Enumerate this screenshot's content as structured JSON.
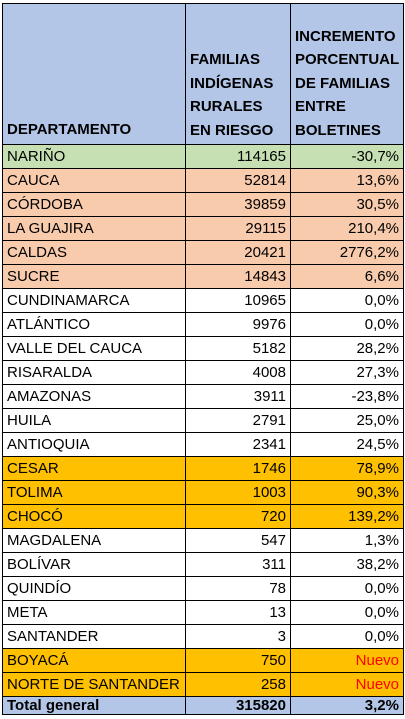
{
  "table": {
    "headers": [
      "DEPARTAMENTO",
      "FAMILIAS INDÍGENAS RURALES EN RIESGO",
      "INCREMENTO PORCENTUAL DE FAMILIAS ENTRE BOLETINES"
    ],
    "rows": [
      {
        "departamento": "NARIÑO",
        "familias": "114165",
        "incremento": "-30,7%",
        "highlight": "green"
      },
      {
        "departamento": "CAUCA",
        "familias": "52814",
        "incremento": "13,6%",
        "highlight": "salmon"
      },
      {
        "departamento": "CÓRDOBA",
        "familias": "39859",
        "incremento": "30,5%",
        "highlight": "salmon"
      },
      {
        "departamento": "LA GUAJIRA",
        "familias": "29115",
        "incremento": "210,4%",
        "highlight": "salmon"
      },
      {
        "departamento": "CALDAS",
        "familias": "20421",
        "incremento": "2776,2%",
        "highlight": "salmon"
      },
      {
        "departamento": "SUCRE",
        "familias": "14843",
        "incremento": "6,6%",
        "highlight": "salmon"
      },
      {
        "departamento": "CUNDINAMARCA",
        "familias": "10965",
        "incremento": "0,0%",
        "highlight": "white"
      },
      {
        "departamento": "ATLÁNTICO",
        "familias": "9976",
        "incremento": "0,0%",
        "highlight": "white"
      },
      {
        "departamento": "VALLE DEL CAUCA",
        "familias": "5182",
        "incremento": "28,2%",
        "highlight": "white"
      },
      {
        "departamento": "RISARALDA",
        "familias": "4008",
        "incremento": "27,3%",
        "highlight": "white"
      },
      {
        "departamento": "AMAZONAS",
        "familias": "3911",
        "incremento": "-23,8%",
        "highlight": "white"
      },
      {
        "departamento": "HUILA",
        "familias": "2791",
        "incremento": "25,0%",
        "highlight": "white"
      },
      {
        "departamento": "ANTIOQUIA",
        "familias": "2341",
        "incremento": "24,5%",
        "highlight": "white"
      },
      {
        "departamento": "CESAR",
        "familias": "1746",
        "incremento": "78,9%",
        "highlight": "gold"
      },
      {
        "departamento": "TOLIMA",
        "familias": "1003",
        "incremento": "90,3%",
        "highlight": "gold"
      },
      {
        "departamento": "CHOCÓ",
        "familias": "720",
        "incremento": "139,2%",
        "highlight": "gold"
      },
      {
        "departamento": "MAGDALENA",
        "familias": "547",
        "incremento": "1,3%",
        "highlight": "white"
      },
      {
        "departamento": "BOLÍVAR",
        "familias": "311",
        "incremento": "38,2%",
        "highlight": "white"
      },
      {
        "departamento": "QUINDÍO",
        "familias": "78",
        "incremento": "0,0%",
        "highlight": "white"
      },
      {
        "departamento": "META",
        "familias": "13",
        "incremento": "0,0%",
        "highlight": "white"
      },
      {
        "departamento": "SANTANDER",
        "familias": "3",
        "incremento": "0,0%",
        "highlight": "white"
      },
      {
        "departamento": "BOYACÁ",
        "familias": "750",
        "incremento": "Nuevo",
        "highlight": "gold"
      },
      {
        "departamento": "NORTE DE SANTANDER",
        "familias": "258",
        "incremento": "Nuevo",
        "highlight": "gold"
      }
    ],
    "total": {
      "departamento": "Total general",
      "familias": "315820",
      "incremento": "3,2%"
    }
  },
  "colors": {
    "header": "#b4c6e7",
    "green": "#c6e0b4",
    "salmon": "#f8cbad",
    "gold": "#ffc000",
    "nuevo_text": "#ff0000"
  }
}
